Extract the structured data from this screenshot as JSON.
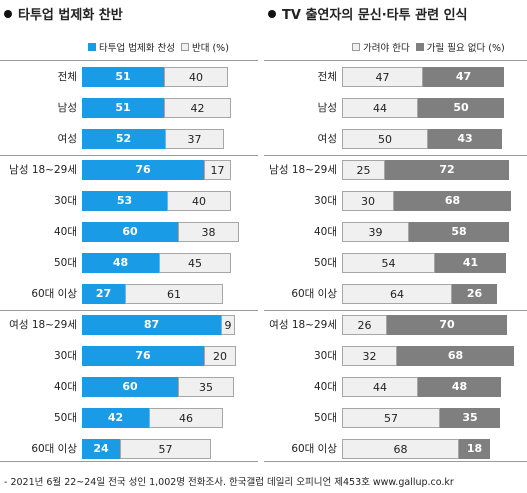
{
  "footnote": "- 2021년 6월 22~24일 전국 성인 1,002명 전화조사. 한국갤럽 데일리 오피니언 제453호 www.gallup.co.kr",
  "colors": {
    "approve": "#1a9be6",
    "oppose": "#f0f0f0",
    "need": "#f0f0f0",
    "no_need": "#7f7f7f"
  },
  "chart_data": [
    {
      "type": "bar",
      "stacked": true,
      "orientation": "horizontal",
      "title": "타투업 법제화 찬반",
      "categories": [
        "전체",
        "남성",
        "여성",
        "남성 18~29세",
        "30대",
        "40대",
        "50대",
        "60대 이상",
        "여성 18~29세",
        "30대",
        "40대",
        "50대",
        "60대 이상"
      ],
      "series": [
        {
          "name": "타투업 법제화 찬성",
          "color": "#1a9be6",
          "values": [
            51,
            51,
            52,
            76,
            53,
            60,
            48,
            27,
            87,
            76,
            60,
            42,
            24
          ]
        },
        {
          "name": "반대 (%)",
          "color": "#f0f0f0",
          "values": [
            40,
            42,
            37,
            17,
            40,
            38,
            45,
            61,
            9,
            20,
            35,
            46,
            57
          ]
        }
      ],
      "xlim": [
        0,
        100
      ]
    },
    {
      "type": "bar",
      "stacked": true,
      "orientation": "horizontal",
      "title": "TV 출연자의 문신·타투 관련 인식",
      "categories": [
        "전체",
        "남성",
        "여성",
        "남성 18~29세",
        "30대",
        "40대",
        "50대",
        "60대 이상",
        "여성 18~29세",
        "30대",
        "40대",
        "50대",
        "60대 이상"
      ],
      "series": [
        {
          "name": "가려야 한다",
          "color": "#f0f0f0",
          "values": [
            47,
            44,
            50,
            25,
            30,
            39,
            54,
            64,
            26,
            32,
            44,
            57,
            68
          ]
        },
        {
          "name": "가릴 필요 없다 (%)",
          "color": "#7f7f7f",
          "values": [
            47,
            50,
            43,
            72,
            68,
            58,
            41,
            26,
            70,
            68,
            48,
            35,
            18
          ]
        }
      ],
      "xlim": [
        0,
        100
      ]
    }
  ]
}
